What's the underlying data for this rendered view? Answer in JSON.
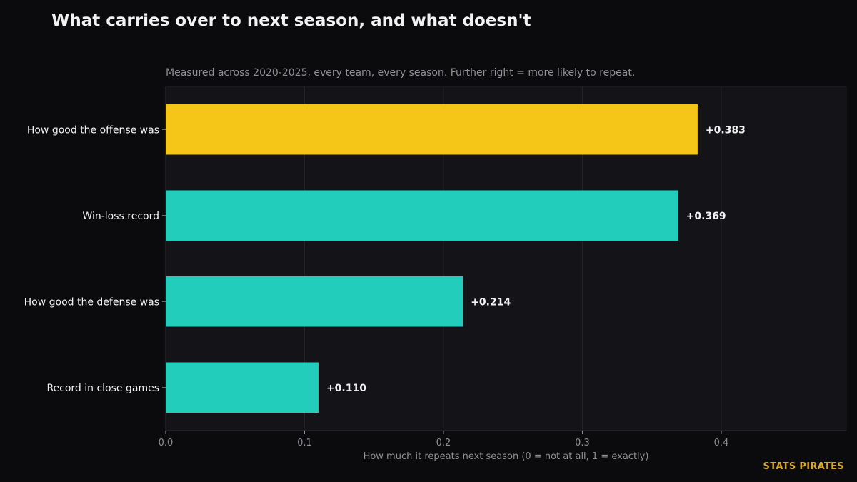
{
  "header": {
    "title": "What carries over to next season, and what doesn't",
    "subtitle": "Measured across 2020-2025, every team, every season. Further right = more likely to repeat."
  },
  "brand": "STATS PIRATES",
  "colors": {
    "background": "#0b0b0d",
    "plot_background": "#131318",
    "highlight": "#f5c518",
    "bar": "#22cdbc",
    "text": "#f2f2f2",
    "muted": "#8f8f96"
  },
  "chart_data": {
    "type": "bar",
    "orientation": "horizontal",
    "categories": [
      "How good the offense was",
      "Win-loss record",
      "How good the defense was",
      "Record in close games"
    ],
    "values": [
      0.383,
      0.369,
      0.214,
      0.11
    ],
    "value_labels": [
      "+0.383",
      "+0.369",
      "+0.214",
      "+0.110"
    ],
    "highlighted_category": "How good the offense was",
    "title": "What carries over to next season, and what doesn't",
    "subtitle": "Measured across 2020-2025, every team, every season. Further right = more likely to repeat.",
    "xlabel": "How much it repeats next season (0 = not at all, 1 = exactly)",
    "ylabel": "",
    "xlim": [
      0,
      0.49
    ],
    "xticks": [
      0.0,
      0.1,
      0.2,
      0.3,
      0.4
    ],
    "xtick_labels": [
      "0.0",
      "0.1",
      "0.2",
      "0.3",
      "0.4"
    ],
    "grid": "vertical",
    "legend": "none"
  }
}
